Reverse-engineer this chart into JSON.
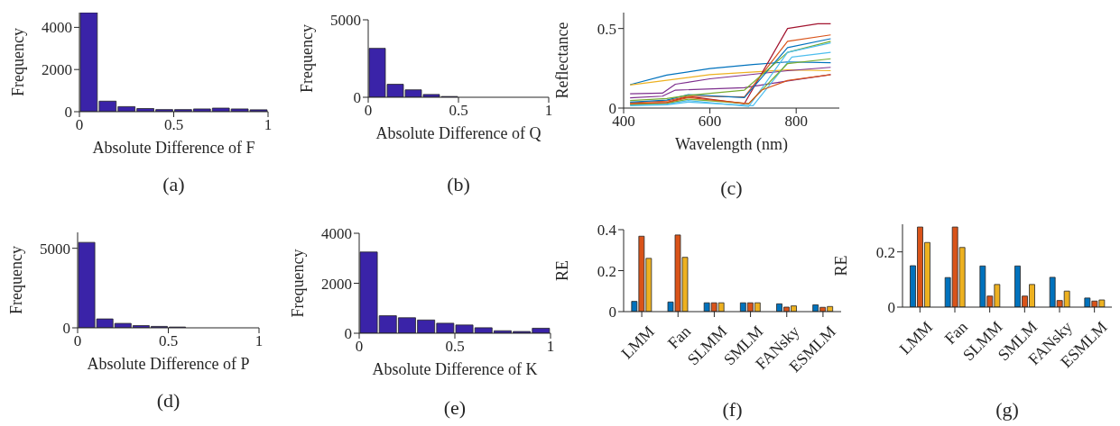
{
  "chart_data": [
    {
      "type": "histogram",
      "xlabel": "Absolute Difference of F",
      "ylabel": "Frequency",
      "annotations": [
        "(a)"
      ],
      "color": "#3a23a8",
      "bins": [
        0,
        0.1,
        0.2,
        0.3,
        0.4,
        0.5,
        0.6,
        0.7,
        0.8,
        0.9,
        1
      ],
      "values": [
        4700,
        500,
        240,
        150,
        100,
        100,
        130,
        170,
        130,
        90
      ],
      "xlim": [
        0,
        1
      ],
      "xticks": [
        0,
        0.5,
        1
      ],
      "ylim": [
        0,
        4700
      ],
      "yticks": [
        0,
        2000,
        4000
      ]
    },
    {
      "type": "histogram",
      "xlabel": "Absolute Difference of Q",
      "ylabel": "Frequency",
      "annotations": [
        "(b)"
      ],
      "color": "#3a23a8",
      "bins": [
        0,
        0.1,
        0.2,
        0.3,
        0.4,
        0.5,
        0.6,
        0.7,
        0.8,
        0.9,
        1
      ],
      "values": [
        3160,
        840,
        480,
        180,
        50,
        0,
        0,
        0,
        0,
        0
      ],
      "xlim": [
        0,
        1
      ],
      "xticks": [
        0,
        0.5,
        1
      ],
      "ylim": [
        0,
        5000
      ],
      "yticks": [
        0,
        5000
      ]
    },
    {
      "type": "line",
      "xlabel": "Wavelength (nm)",
      "ylabel": "Reflectance",
      "annotations": [
        "(c)"
      ],
      "xlim": [
        400,
        900
      ],
      "xticks": [
        400,
        600,
        800
      ],
      "ylim": [
        0,
        0.6
      ],
      "yticks": [
        0,
        0.5
      ],
      "series": [
        {
          "color": "#0072bd",
          "x": [
            415,
            500,
            600,
            700,
            780,
            880
          ],
          "values": [
            0.147,
            0.207,
            0.248,
            0.274,
            0.29,
            0.285
          ]
        },
        {
          "color": "#edb120",
          "x": [
            415,
            600,
            780,
            880
          ],
          "values": [
            0.145,
            0.21,
            0.24,
            0.235
          ]
        },
        {
          "color": "#7e2f8e",
          "x": [
            415,
            490,
            520,
            600,
            780,
            880
          ],
          "values": [
            0.09,
            0.094,
            0.15,
            0.184,
            0.235,
            0.256
          ]
        },
        {
          "color": "#7e2f8e",
          "x": [
            415,
            490,
            520,
            680,
            780,
            880
          ],
          "values": [
            0.064,
            0.075,
            0.113,
            0.128,
            0.17,
            0.21
          ]
        },
        {
          "color": "#a2142f",
          "x": [
            415,
            500,
            540,
            560,
            680,
            780,
            850,
            880
          ],
          "values": [
            0.028,
            0.035,
            0.066,
            0.07,
            0.028,
            0.5,
            0.53,
            0.53
          ]
        },
        {
          "color": "#d95319",
          "x": [
            415,
            500,
            550,
            680,
            780,
            880
          ],
          "values": [
            0.034,
            0.045,
            0.075,
            0.07,
            0.42,
            0.46
          ]
        },
        {
          "color": "#0072bd",
          "x": [
            415,
            500,
            550,
            680,
            780,
            880
          ],
          "values": [
            0.038,
            0.05,
            0.085,
            0.066,
            0.38,
            0.436
          ]
        },
        {
          "color": "#77ac30",
          "x": [
            415,
            500,
            550,
            680,
            780,
            880
          ],
          "values": [
            0.047,
            0.06,
            0.08,
            0.113,
            0.35,
            0.42
          ]
        },
        {
          "color": "#4dbeee",
          "x": [
            415,
            500,
            550,
            690,
            780,
            880
          ],
          "values": [
            0.019,
            0.025,
            0.047,
            0.01,
            0.35,
            0.41
          ]
        },
        {
          "color": "#4dbeee",
          "x": [
            415,
            500,
            550,
            700,
            790,
            880
          ],
          "values": [
            0.015,
            0.02,
            0.038,
            0.015,
            0.32,
            0.35
          ]
        },
        {
          "color": "#77ac30",
          "x": [
            415,
            500,
            550,
            690,
            780,
            880
          ],
          "values": [
            0.023,
            0.03,
            0.056,
            0.028,
            0.28,
            0.31
          ]
        },
        {
          "color": "#d95319",
          "x": [
            415,
            500,
            550,
            690,
            720,
            780,
            880
          ],
          "values": [
            0.028,
            0.035,
            0.066,
            0.028,
            0.113,
            0.173,
            0.21
          ]
        }
      ]
    },
    {
      "type": "histogram",
      "xlabel": "Absolute Difference of P",
      "ylabel": "Frequency",
      "annotations": [
        "(d)"
      ],
      "color": "#3a23a8",
      "bins": [
        0,
        0.1,
        0.2,
        0.3,
        0.4,
        0.5,
        0.6,
        0.7,
        0.8,
        0.9,
        1
      ],
      "values": [
        5370,
        560,
        280,
        140,
        90,
        50,
        0,
        0,
        0,
        0
      ],
      "xlim": [
        0,
        1
      ],
      "xticks": [
        0,
        0.5,
        1
      ],
      "ylim": [
        0,
        6000
      ],
      "yticks": [
        0,
        5000
      ]
    },
    {
      "type": "histogram",
      "xlabel": "Absolute Difference of K",
      "ylabel": "Frequency",
      "annotations": [
        "(e)"
      ],
      "color": "#3a23a8",
      "bins": [
        0,
        0.1,
        0.2,
        0.3,
        0.4,
        0.5,
        0.6,
        0.7,
        0.8,
        0.9,
        1
      ],
      "values": [
        3250,
        700,
        620,
        530,
        400,
        330,
        220,
        100,
        70,
        200
      ],
      "xlim": [
        0,
        1
      ],
      "xticks": [
        0,
        0.5,
        1
      ],
      "ylim": [
        0,
        4000
      ],
      "yticks": [
        0,
        2000,
        4000
      ]
    },
    {
      "type": "bar",
      "ylabel": "RE",
      "annotations": [
        "(f)"
      ],
      "categories": [
        "LMM",
        "Fan",
        "SLMM",
        "SMLM",
        "FANsky",
        "ESMLM"
      ],
      "ylim": [
        0,
        0.4
      ],
      "yticks": [
        0,
        0.2,
        0.4
      ],
      "series": [
        {
          "color": "#0072bd",
          "values": [
            0.05,
            0.047,
            0.043,
            0.043,
            0.038,
            0.033
          ]
        },
        {
          "color": "#d95319",
          "values": [
            0.368,
            0.374,
            0.043,
            0.043,
            0.022,
            0.021
          ]
        },
        {
          "color": "#edb120",
          "values": [
            0.26,
            0.265,
            0.043,
            0.043,
            0.028,
            0.025
          ]
        }
      ]
    },
    {
      "type": "bar",
      "ylabel": "RE",
      "annotations": [
        "(g)"
      ],
      "categories": [
        "LMM",
        "Fan",
        "SLMM",
        "SMLM",
        "FANsky",
        "ESMLM"
      ],
      "ylim": [
        0,
        0.3
      ],
      "yticks": [
        0,
        0.2
      ],
      "series": [
        {
          "color": "#0072bd",
          "values": [
            0.15,
            0.107,
            0.149,
            0.149,
            0.108,
            0.033
          ]
        },
        {
          "color": "#d95319",
          "values": [
            0.29,
            0.29,
            0.04,
            0.04,
            0.024,
            0.022
          ]
        },
        {
          "color": "#edb120",
          "values": [
            0.234,
            0.216,
            0.082,
            0.082,
            0.058,
            0.026
          ]
        }
      ]
    }
  ]
}
